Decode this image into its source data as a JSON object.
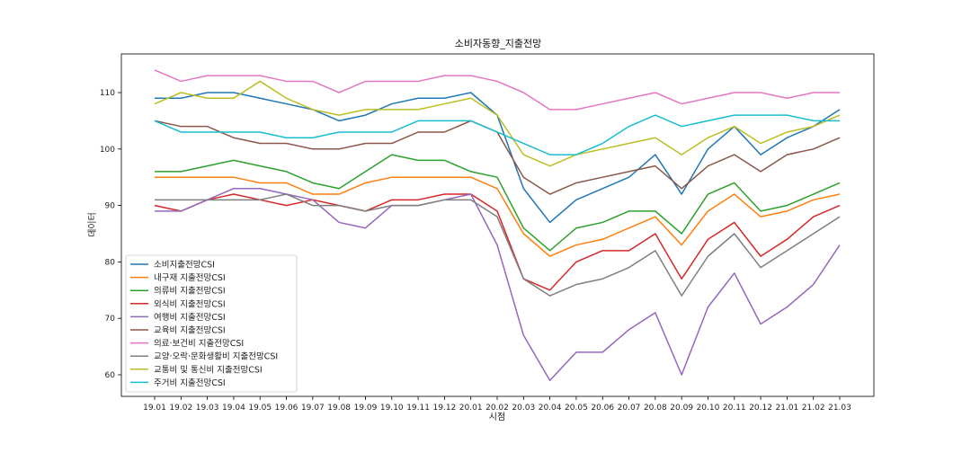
{
  "chart_data": {
    "type": "line",
    "title": "소비자동향_지출전망",
    "xlabel": "시점",
    "ylabel": "데이터",
    "ylim": [
      57,
      117
    ],
    "yticks": [
      60,
      70,
      80,
      90,
      100,
      110
    ],
    "grid": false,
    "legend_position": "bottom-left",
    "categories": [
      "19.01",
      "19.02",
      "19.03",
      "19.04",
      "19.05",
      "19.06",
      "19.07",
      "19.08",
      "19.09",
      "19.10",
      "19.11",
      "19.12",
      "20.01",
      "20.02",
      "20.03",
      "20.04",
      "20.05",
      "20.06",
      "20.07",
      "20.08",
      "20.09",
      "20.10",
      "20.11",
      "20.12",
      "21.01",
      "21.02",
      "21.03"
    ],
    "series": [
      {
        "name": "소비지출전망CSI",
        "color": "#1f77b4",
        "values": [
          109,
          109,
          110,
          110,
          109,
          108,
          107,
          105,
          106,
          108,
          109,
          109,
          110,
          106,
          93,
          87,
          91,
          93,
          95,
          99,
          92,
          100,
          104,
          99,
          102,
          104,
          107
        ]
      },
      {
        "name": "내구재 지출전망CSI",
        "color": "#ff7f0e",
        "values": [
          95,
          95,
          95,
          95,
          94,
          94,
          92,
          92,
          94,
          95,
          95,
          95,
          95,
          93,
          85,
          81,
          83,
          84,
          86,
          88,
          83,
          89,
          92,
          88,
          89,
          91,
          92
        ]
      },
      {
        "name": "의류비 지출전망CSI",
        "color": "#2ca02c",
        "values": [
          96,
          96,
          97,
          98,
          97,
          96,
          94,
          93,
          96,
          99,
          98,
          98,
          96,
          95,
          86,
          82,
          86,
          87,
          89,
          89,
          85,
          92,
          94,
          89,
          90,
          92,
          94
        ]
      },
      {
        "name": "외식비 지출전망CSI",
        "color": "#d62728",
        "values": [
          90,
          89,
          91,
          92,
          91,
          90,
          91,
          90,
          89,
          91,
          91,
          92,
          92,
          89,
          77,
          75,
          80,
          82,
          82,
          85,
          77,
          84,
          87,
          81,
          84,
          88,
          90
        ]
      },
      {
        "name": "여행비 지출전망CSI",
        "color": "#9467bd",
        "values": [
          89,
          89,
          91,
          93,
          93,
          92,
          91,
          87,
          86,
          90,
          90,
          91,
          92,
          83,
          67,
          59,
          64,
          64,
          68,
          71,
          60,
          72,
          78,
          69,
          72,
          76,
          83
        ]
      },
      {
        "name": "교육비 지출전망CSI",
        "color": "#8c564b",
        "values": [
          105,
          104,
          104,
          102,
          101,
          101,
          100,
          100,
          101,
          101,
          103,
          103,
          105,
          103,
          95,
          92,
          94,
          95,
          96,
          97,
          93,
          97,
          99,
          96,
          99,
          100,
          102
        ]
      },
      {
        "name": "의료·보건비 지출전망CSI",
        "color": "#e377c2",
        "values": [
          114,
          112,
          113,
          113,
          113,
          112,
          112,
          110,
          112,
          112,
          112,
          113,
          113,
          112,
          110,
          107,
          107,
          108,
          109,
          110,
          108,
          109,
          110,
          110,
          109,
          110,
          110
        ]
      },
      {
        "name": "교양·오락·문화생활비 지출전망CSI",
        "color": "#7f7f7f",
        "values": [
          91,
          91,
          91,
          91,
          91,
          92,
          90,
          90,
          89,
          90,
          90,
          91,
          91,
          88,
          77,
          74,
          76,
          77,
          79,
          82,
          74,
          81,
          85,
          79,
          82,
          85,
          88
        ]
      },
      {
        "name": "교통비 및 통신비 지출전망CSI",
        "color": "#bcbd22",
        "values": [
          108,
          110,
          109,
          109,
          112,
          109,
          107,
          106,
          107,
          107,
          107,
          108,
          109,
          106,
          99,
          97,
          99,
          100,
          101,
          102,
          99,
          102,
          104,
          101,
          103,
          104,
          106
        ]
      },
      {
        "name": "주거비 지출전망CSI",
        "color": "#17becf",
        "values": [
          105,
          103,
          103,
          103,
          103,
          102,
          102,
          103,
          103,
          103,
          105,
          105,
          105,
          103,
          101,
          99,
          99,
          101,
          104,
          106,
          104,
          105,
          106,
          106,
          106,
          105,
          105
        ]
      }
    ]
  }
}
